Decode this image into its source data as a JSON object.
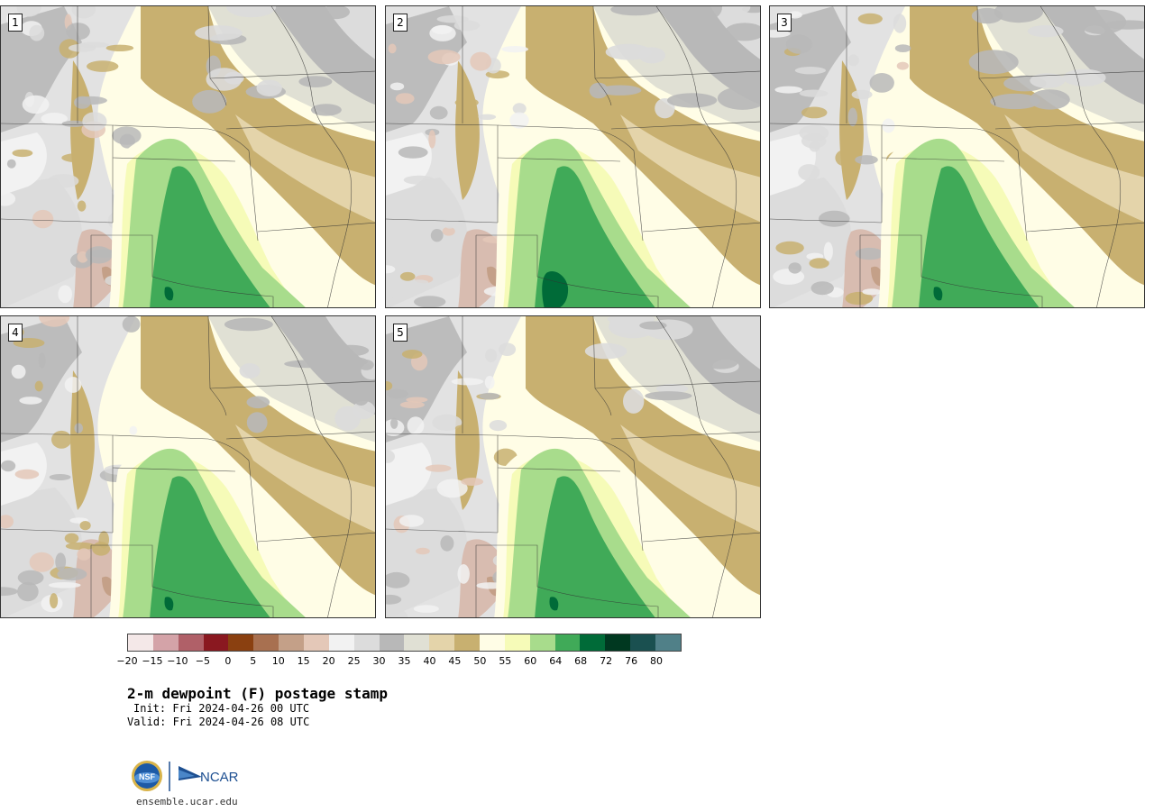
{
  "panels": [
    {
      "id": 1,
      "label": "1"
    },
    {
      "id": 2,
      "label": "2"
    },
    {
      "id": 3,
      "label": "3"
    },
    {
      "id": 4,
      "label": "4"
    },
    {
      "id": 5,
      "label": "5"
    }
  ],
  "colorbar": {
    "colors": [
      "#f4e8e8",
      "#d4a3a8",
      "#b06068",
      "#8a1820",
      "#8a4010",
      "#a87050",
      "#c4a088",
      "#e4c8b8",
      "#f2f2f2",
      "#dcdcdc",
      "#b8b8b8",
      "#e0e0d4",
      "#e4d4aa",
      "#c8b070",
      "#fffde6",
      "#f6fbb8",
      "#a8dc8c",
      "#40aa58",
      "#006b38",
      "#003820",
      "#1a5050",
      "#508088"
    ],
    "ticks": [
      "−20",
      "−15",
      "−10",
      "−5",
      "0",
      "5",
      "10",
      "15",
      "20",
      "25",
      "30",
      "35",
      "40",
      "45",
      "50",
      "55",
      "60",
      "64",
      "68",
      "72",
      "76",
      "80"
    ]
  },
  "title": "2-m dewpoint (F) postage stamp",
  "init": "Init: Fri 2024-04-26 00 UTC",
  "valid": "Valid: Fri 2024-04-26 08 UTC",
  "logos": {
    "nsf": "NSF",
    "ncar": "NCAR"
  },
  "site": "ensemble.ucar.edu"
}
